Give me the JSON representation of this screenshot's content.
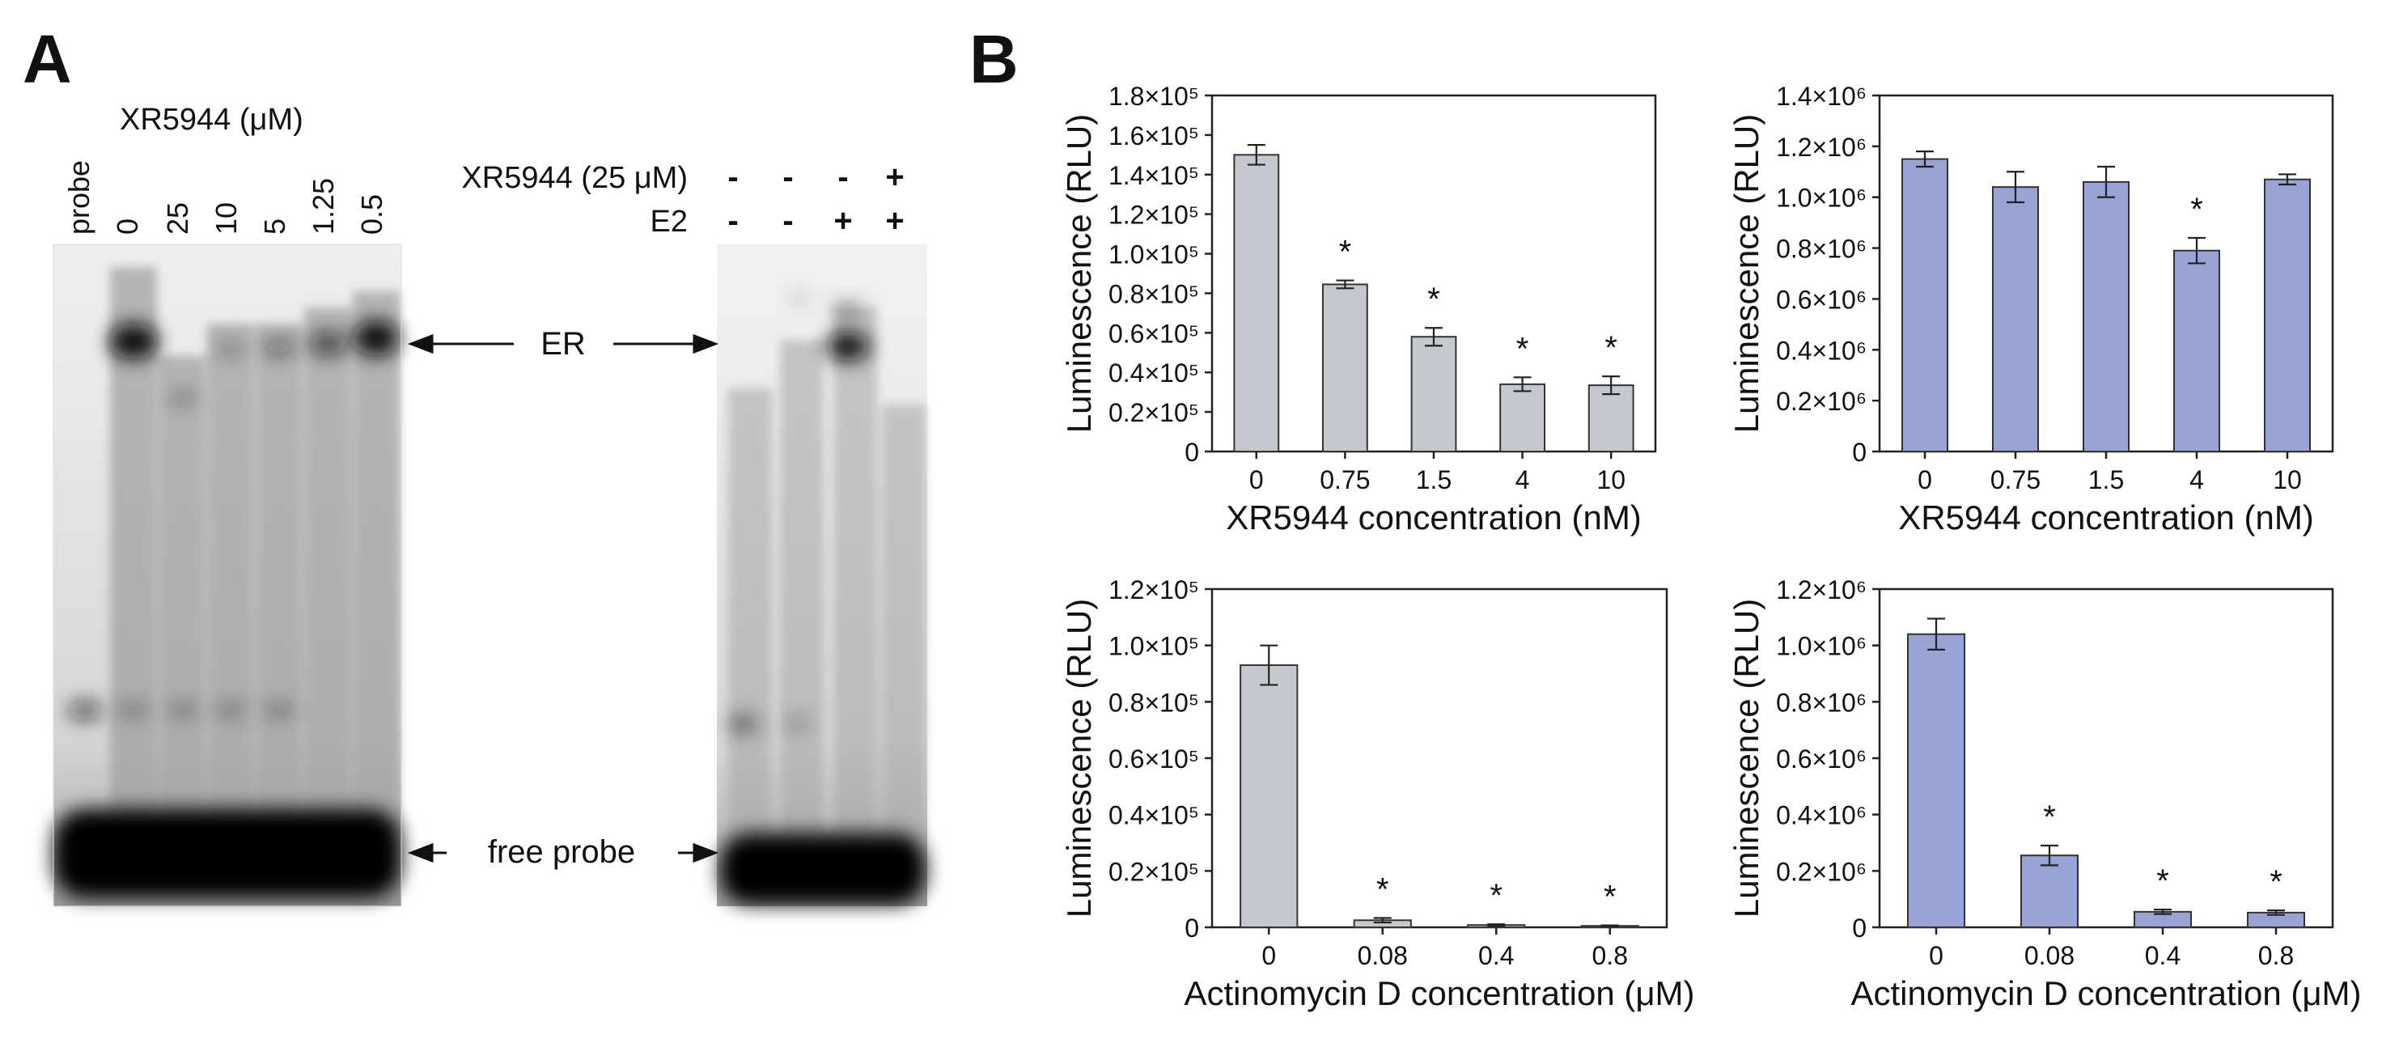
{
  "panel_labels": {
    "a": "A",
    "b": "B"
  },
  "gel": {
    "treatment_label": "XR5944 (μM)",
    "lanes_left": [
      "probe",
      "0",
      "25",
      "10",
      "5",
      "1.25",
      "0.5"
    ],
    "right_row1_label": "XR5944 (25 μM)",
    "right_row1_signs": [
      "-",
      "-",
      "-",
      "+"
    ],
    "right_row2_label": "E2",
    "right_row2_signs": [
      "-",
      "-",
      "+",
      "+"
    ],
    "band_er": "ER",
    "band_free": "free probe"
  },
  "chart_data": [
    {
      "type": "bar",
      "categories": [
        "0",
        "0.75",
        "1.5",
        "4",
        "10"
      ],
      "values": [
        150000,
        84500,
        58000,
        34000,
        33500
      ],
      "errors": [
        5000,
        2000,
        4500,
        3500,
        4500
      ],
      "significant": [
        false,
        true,
        true,
        true,
        true
      ],
      "xlabel": "XR5944 concentration (nM)",
      "ylabel": "Luminescence (RLU)",
      "ylim": [
        0,
        180000
      ],
      "yticks": [
        0,
        20000,
        40000,
        60000,
        80000,
        100000,
        120000,
        140000,
        160000,
        180000
      ],
      "ytick_labels": [
        "0",
        "0.2×10⁵",
        "0.4×10⁵",
        "0.6×10⁵",
        "0.8×10⁵",
        "1.0×10⁵",
        "1.2×10⁵",
        "1.4×10⁵",
        "1.6×10⁵",
        "1.8×10⁵"
      ],
      "bar_color": "#c5c9cf"
    },
    {
      "type": "bar",
      "categories": [
        "0",
        "0.75",
        "1.5",
        "4",
        "10"
      ],
      "values": [
        1150000,
        1040000,
        1060000,
        790000,
        1070000
      ],
      "errors": [
        30000,
        60000,
        60000,
        50000,
        20000
      ],
      "significant": [
        false,
        false,
        false,
        true,
        false
      ],
      "xlabel": "XR5944 concentration (nM)",
      "ylabel": "Luminescence (RLU)",
      "ylim": [
        0,
        1400000
      ],
      "yticks": [
        0,
        200000,
        400000,
        600000,
        800000,
        1000000,
        1200000,
        1400000
      ],
      "ytick_labels": [
        "0",
        "0.2×10⁶",
        "0.4×10⁶",
        "0.6×10⁶",
        "0.8×10⁶",
        "1.0×10⁶",
        "1.2×10⁶",
        "1.4×10⁶"
      ],
      "bar_color": "#99a3d6"
    },
    {
      "type": "bar",
      "categories": [
        "0",
        "0.08",
        "0.4",
        "0.8"
      ],
      "values": [
        93000,
        2500,
        800,
        500
      ],
      "errors": [
        7000,
        800,
        300,
        200
      ],
      "significant": [
        false,
        true,
        true,
        true
      ],
      "xlabel": "Actinomycin D concentration (μM)",
      "ylabel": "Luminescence (RLU)",
      "ylim": [
        0,
        120000
      ],
      "yticks": [
        0,
        20000,
        40000,
        60000,
        80000,
        100000,
        120000
      ],
      "ytick_labels": [
        "0",
        "0.2×10⁵",
        "0.4×10⁵",
        "0.6×10⁵",
        "0.8×10⁵",
        "1.0×10⁵",
        "1.2×10⁵"
      ],
      "bar_color": "#c5c9cf"
    },
    {
      "type": "bar",
      "categories": [
        "0",
        "0.08",
        "0.4",
        "0.8"
      ],
      "values": [
        1040000,
        255000,
        55000,
        52000
      ],
      "errors": [
        55000,
        35000,
        8000,
        8000
      ],
      "significant": [
        false,
        true,
        true,
        true
      ],
      "xlabel": "Actinomycin D concentration (μM)",
      "ylabel": "Luminescence (RLU)",
      "ylim": [
        0,
        1200000
      ],
      "yticks": [
        0,
        200000,
        400000,
        600000,
        800000,
        1000000,
        1200000
      ],
      "ytick_labels": [
        "0",
        "0.2×10⁶",
        "0.4×10⁶",
        "0.6×10⁶",
        "0.8×10⁶",
        "1.0×10⁶",
        "1.2×10⁶"
      ],
      "bar_color": "#99a3d6"
    }
  ]
}
